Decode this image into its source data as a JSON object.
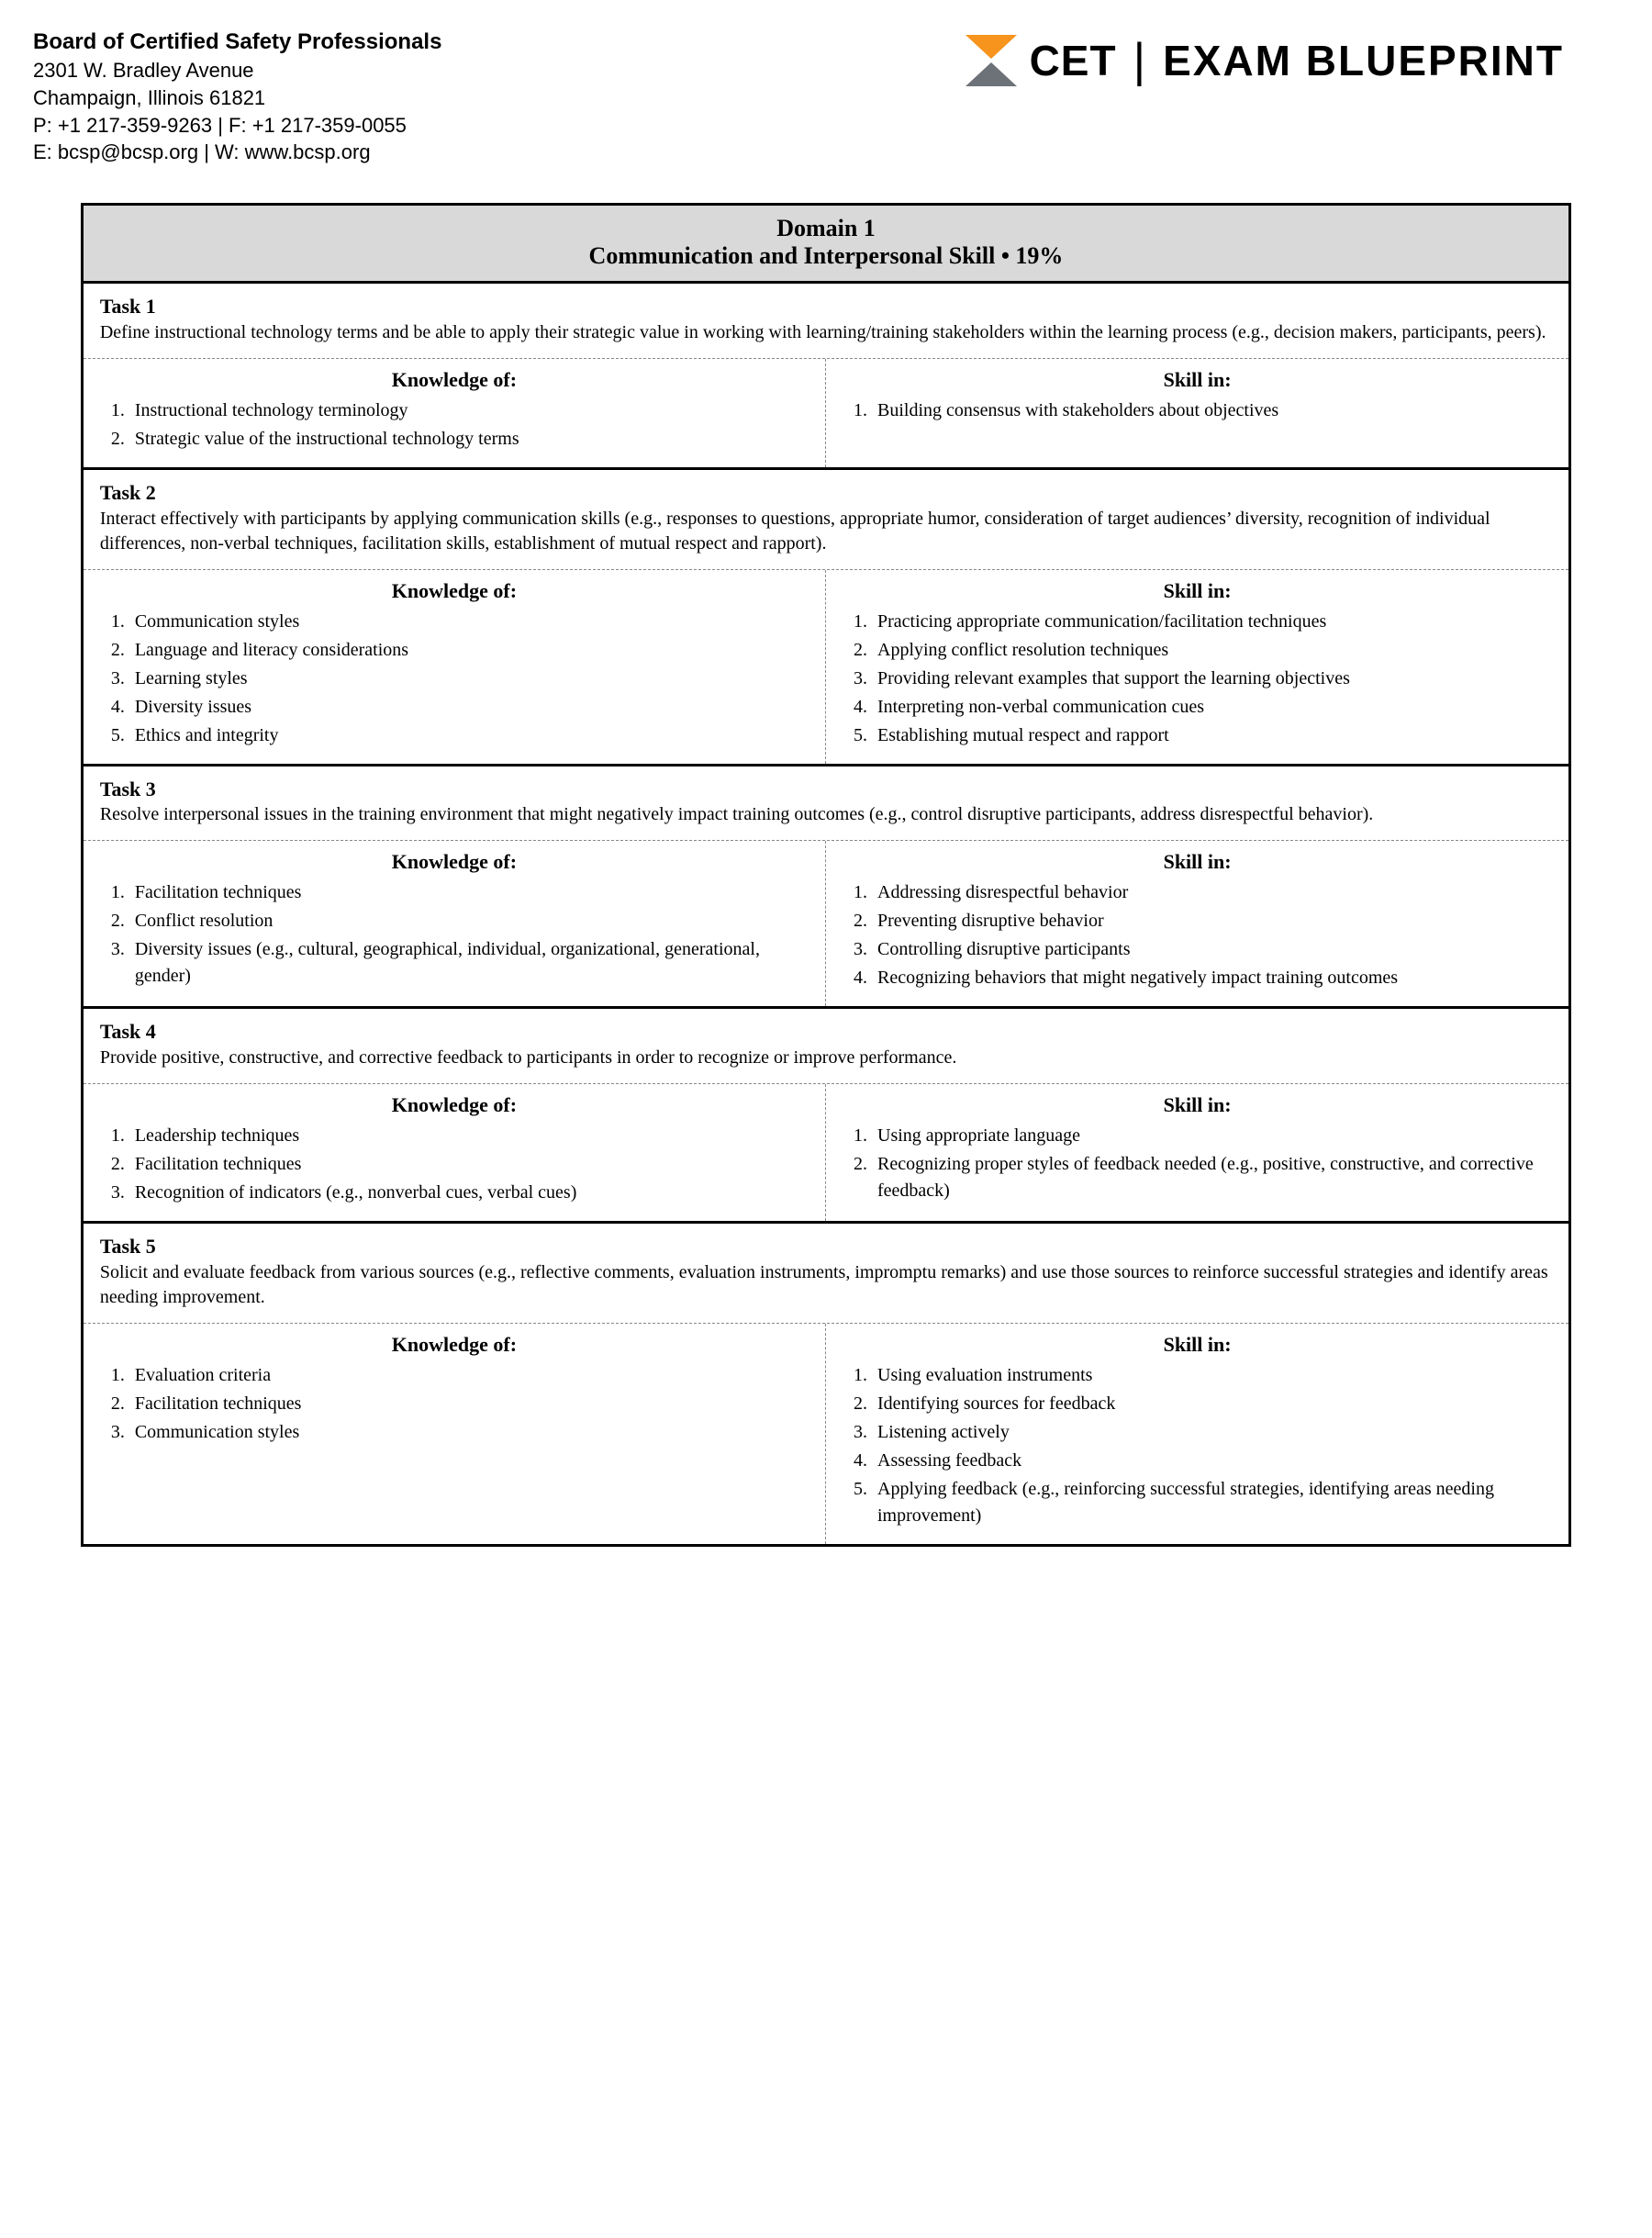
{
  "org": {
    "name": "Board of Certified Safety Professionals",
    "addr1": "2301 W. Bradley Avenue",
    "addr2": "Champaign, Illinois 61821",
    "phones": "P: +1 217-359-9263 | F: +1 217-359-0055",
    "contact": "E: bcsp@bcsp.org | W: www.bcsp.org"
  },
  "logo": {
    "cet": "CET",
    "bar": "|",
    "blueprint": "EXAM BLUEPRINT",
    "accent_color": "#f7941d",
    "gray_color": "#6d7278"
  },
  "domain": {
    "line1": "Domain 1",
    "line2": "Communication and Interpersonal Skill • 19%",
    "header_bg": "#d9d9d9"
  },
  "labels": {
    "knowledge": "Knowledge of:",
    "skill": "Skill in:"
  },
  "tasks": [
    {
      "title": "Task 1",
      "desc": "Define instructional technology terms and be able to apply their strategic value in working with learning/training stakeholders within the learning process (e.g., decision makers, participants, peers).",
      "knowledge": [
        "Instructional technology terminology",
        "Strategic value of the instructional technology terms"
      ],
      "skill": [
        "Building consensus with stakeholders about objectives"
      ]
    },
    {
      "title": "Task 2",
      "desc": "Interact effectively with participants by applying communication skills (e.g., responses to questions, appropriate humor, consideration of target audiences’ diversity, recognition of individual differences, non-verbal techniques, facilitation skills, establishment of mutual respect and rapport).",
      "knowledge": [
        "Communication styles",
        "Language and literacy considerations",
        "Learning styles",
        "Diversity issues",
        "Ethics and integrity"
      ],
      "skill": [
        "Practicing appropriate communication/facilitation techniques",
        "Applying conflict resolution techniques",
        "Providing relevant examples that support the learning objectives",
        "Interpreting non-verbal communication cues",
        "Establishing mutual respect and rapport"
      ]
    },
    {
      "title": "Task 3",
      "desc": "Resolve interpersonal issues in the training environment that might negatively impact training outcomes (e.g., control disruptive participants, address disrespectful behavior).",
      "knowledge": [
        "Facilitation techniques",
        "Conflict resolution",
        "Diversity issues (e.g., cultural, geographical, individual, organizational, generational, gender)"
      ],
      "skill": [
        "Addressing disrespectful behavior",
        "Preventing disruptive behavior",
        "Controlling disruptive participants",
        "Recognizing behaviors that might negatively impact training outcomes"
      ]
    },
    {
      "title": "Task 4",
      "desc": "Provide positive, constructive, and corrective feedback to participants in order to recognize or improve performance.",
      "knowledge": [
        "Leadership techniques",
        "Facilitation techniques",
        "Recognition of indicators (e.g., nonverbal cues, verbal cues)"
      ],
      "skill": [
        "Using appropriate language",
        "Recognizing proper styles of feedback needed (e.g., positive, constructive, and corrective feedback)"
      ]
    },
    {
      "title": "Task 5",
      "desc": "Solicit and evaluate feedback from various sources (e.g., reflective comments, evaluation instruments, impromptu remarks) and use those sources to reinforce successful strategies and identify areas needing improvement.",
      "knowledge": [
        "Evaluation criteria",
        "Facilitation techniques",
        "Communication styles"
      ],
      "skill": [
        "Using evaluation instruments",
        "Identifying sources for feedback",
        "Listening actively",
        "Assessing feedback",
        "Applying feedback (e.g., reinforcing successful strategies, identifying areas needing improvement)"
      ]
    }
  ]
}
